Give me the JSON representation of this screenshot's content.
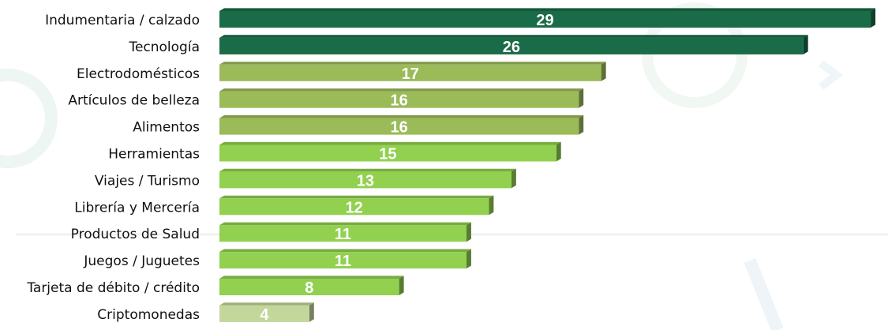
{
  "chart_data": {
    "type": "bar",
    "orientation": "horizontal",
    "title": "",
    "xlabel": "",
    "ylabel": "",
    "xlim": [
      0,
      29
    ],
    "grid": false,
    "legend": "none",
    "categories": [
      "Indumentaria / calzado",
      "Tecnología",
      "Electrodomésticos",
      "Artículos de belleza",
      "Alimentos",
      "Herramientas",
      "Viajes / Turismo",
      "Librería y Mercería",
      "Productos de Salud",
      "Juegos / Juguetes",
      "Tarjeta de débito / crédito",
      "Criptomonedas"
    ],
    "values": [
      29,
      26,
      17,
      16,
      16,
      15,
      13,
      12,
      11,
      11,
      8,
      4
    ],
    "bar_colors": [
      "#1a6b47",
      "#1a6b47",
      "#9bbb59",
      "#9bbb59",
      "#9bbb59",
      "#92d050",
      "#92d050",
      "#92d050",
      "#92d050",
      "#92d050",
      "#92d050",
      "#c4d79b"
    ],
    "label_color": "#ffffff"
  }
}
